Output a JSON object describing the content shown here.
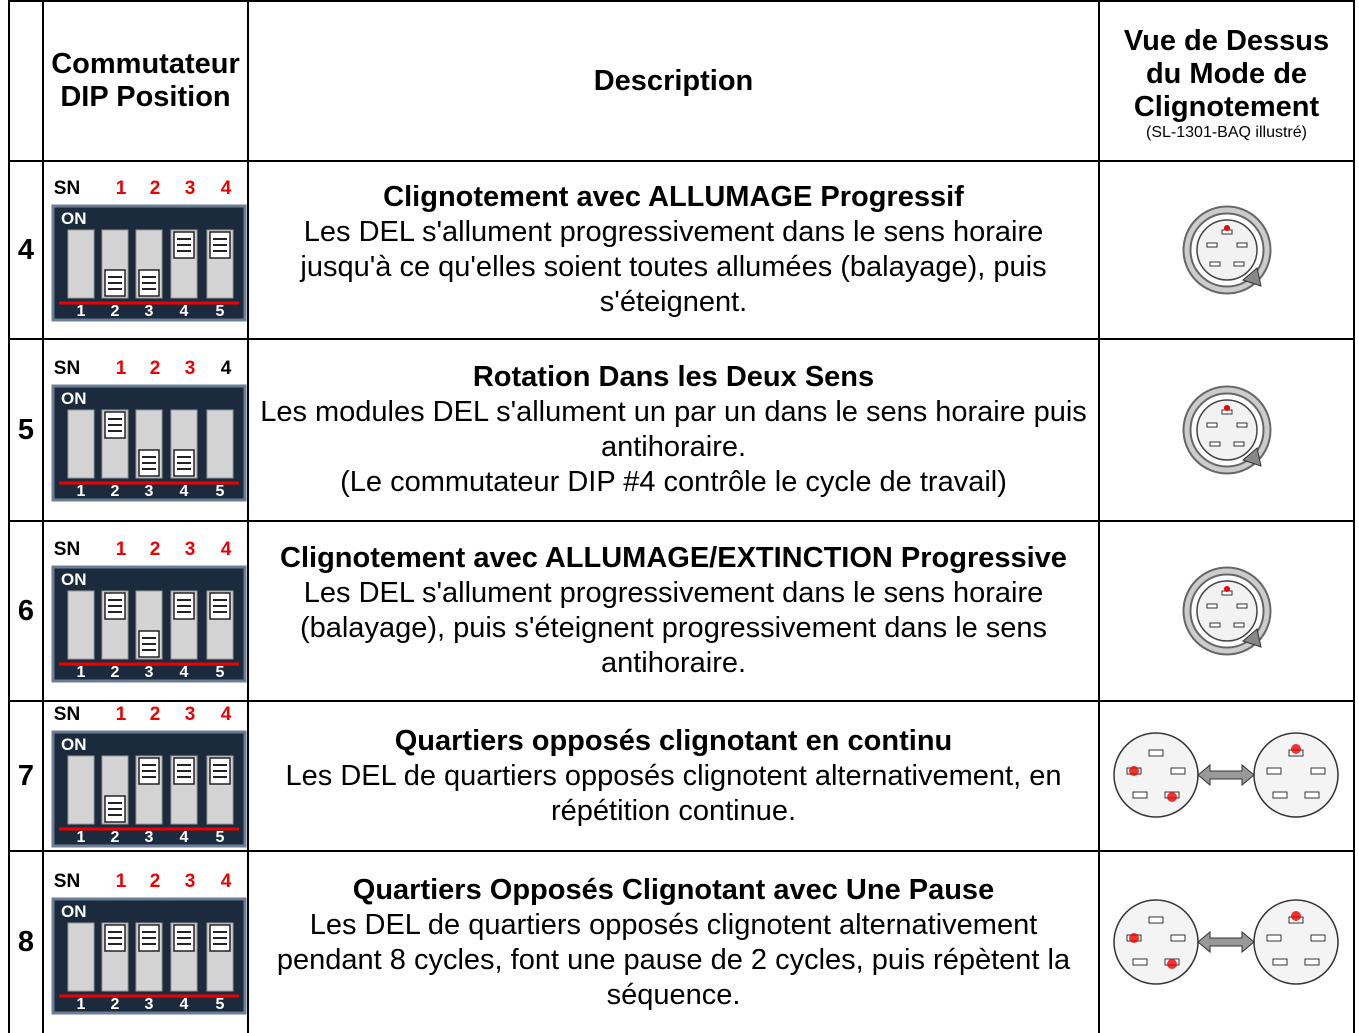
{
  "header": {
    "switch": "Commutateur DIP Position",
    "description": "Description",
    "view": "Vue de Dessus du Mode de Clignotement",
    "view_note": "(SL-1301-BAQ illustré)"
  },
  "rows": [
    {
      "mode": "4",
      "dip": {
        "labels": [
          "SN",
          "1",
          "2",
          "3",
          "4"
        ],
        "on": "ON",
        "numbers": [
          "1",
          "2",
          "3",
          "4",
          "5"
        ]
      },
      "title": "Clignotement avec ALLUMAGE Progressif",
      "text": [
        "Les DEL s'allument progressivement dans le sens horaire jusqu'à ce qu'elles soient toutes allumées (balayage), puis s'éteignent."
      ]
    },
    {
      "mode": "5",
      "dip": {
        "labels": [
          "SN",
          "1",
          "2",
          "3",
          "4"
        ],
        "on": "ON",
        "numbers": [
          "1",
          "2",
          "3",
          "4",
          "5"
        ]
      },
      "title": "Rotation Dans les Deux Sens",
      "text": [
        "Les modules DEL s'allument un par un dans le sens horaire puis antihoraire.",
        "(Le commutateur DIP #4 contrôle le cycle de travail)"
      ]
    },
    {
      "mode": "6",
      "dip": {
        "labels": [
          "SN",
          "1",
          "2",
          "3",
          "4"
        ],
        "on": "ON",
        "numbers": [
          "1",
          "2",
          "3",
          "4",
          "5"
        ]
      },
      "title": "Clignotement avec ALLUMAGE/EXTINCTION Progressive",
      "text": [
        "Les DEL s'allument progressivement dans le sens horaire (balayage), puis s'éteignent progressivement dans le sens antihoraire."
      ]
    },
    {
      "mode": "7",
      "dip": {
        "labels": [
          "SN",
          "1",
          "2",
          "3",
          "4"
        ],
        "on": "ON",
        "numbers": [
          "1",
          "2",
          "3",
          "4",
          "5"
        ]
      },
      "title": "Quartiers opposés clignotant en continu",
      "text": [
        "Les DEL de quartiers opposés clignotent alternativement, en répétition continue."
      ]
    },
    {
      "mode": "8",
      "dip": {
        "labels": [
          "SN",
          "1",
          "2",
          "3",
          "4"
        ],
        "on": "ON",
        "numbers": [
          "1",
          "2",
          "3",
          "4",
          "5"
        ]
      },
      "title": "Quartiers Opposés Clignotant avec Une Pause",
      "text": [
        "Les DEL de quartiers opposés clignotent alternativement pendant 8 cycles, font une pause de 2 cycles, puis répètent la séquence."
      ]
    }
  ]
}
